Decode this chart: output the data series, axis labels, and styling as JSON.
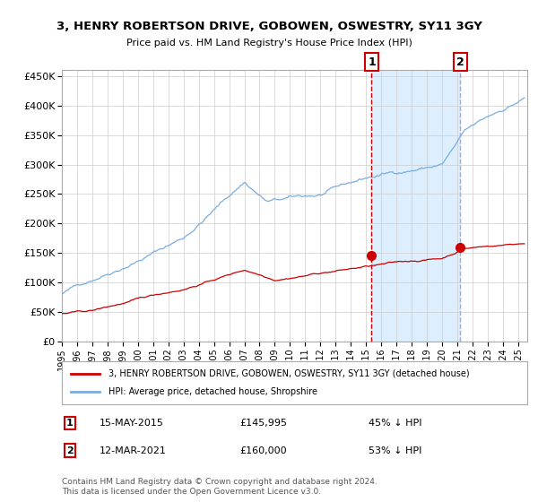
{
  "title": "3, HENRY ROBERTSON DRIVE, GOBOWEN, OSWESTRY, SY11 3GY",
  "subtitle": "Price paid vs. HM Land Registry's House Price Index (HPI)",
  "legend_red": "3, HENRY ROBERTSON DRIVE, GOBOWEN, OSWESTRY, SY11 3GY (detached house)",
  "legend_blue": "HPI: Average price, detached house, Shropshire",
  "annotation1_date": "15-MAY-2015",
  "annotation1_price": "£145,995",
  "annotation1_hpi": "45% ↓ HPI",
  "annotation2_date": "12-MAR-2021",
  "annotation2_price": "£160,000",
  "annotation2_hpi": "53% ↓ HPI",
  "footnote": "Contains HM Land Registry data © Crown copyright and database right 2024.\nThis data is licensed under the Open Government Licence v3.0.",
  "ylim": [
    0,
    460000
  ],
  "yticks": [
    0,
    50000,
    100000,
    150000,
    200000,
    250000,
    300000,
    350000,
    400000,
    450000
  ],
  "ytick_labels": [
    "£0",
    "£50K",
    "£100K",
    "£150K",
    "£200K",
    "£250K",
    "£300K",
    "£350K",
    "£400K",
    "£450K"
  ],
  "marker1_year": 2015.37,
  "marker1_val_red": 145995,
  "marker2_year": 2021.19,
  "marker2_val_red": 160000,
  "red_color": "#cc0000",
  "blue_color": "#7aadde",
  "shade_color": "#ddeeff",
  "vline1_color": "#cc0000",
  "vline2_color": "#aaaacc",
  "background_color": "#ffffff",
  "grid_color": "#cccccc"
}
